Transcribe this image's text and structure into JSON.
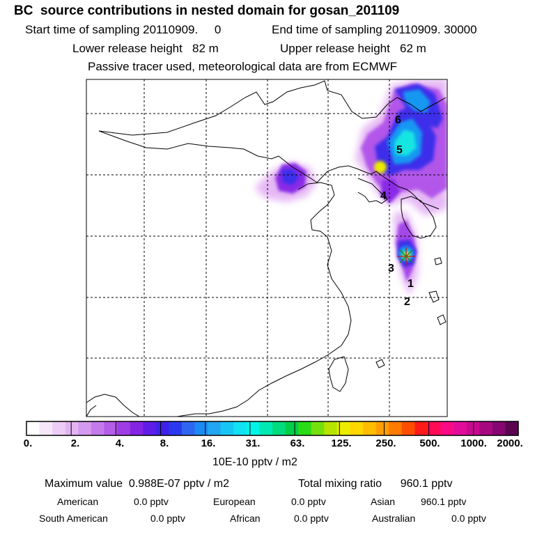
{
  "header": {
    "title": "BC  source contributions in nested domain for gosan_201109",
    "start_time": "Start time of sampling 20110909.     0",
    "end_time": "End time of sampling 20110909. 30000",
    "lower_release": "Lower release height   82 m",
    "upper_release": "Upper release height   62 m",
    "tracer_info": "Passive tracer used, meteorological data are from ECMWF"
  },
  "map": {
    "trajectory_labels": [
      "1",
      "2",
      "3",
      "4",
      "5",
      "6"
    ],
    "receptor_marker": "receptor-star"
  },
  "colorbar": {
    "tick_labels": [
      "0.",
      "2.",
      "4.",
      "8.",
      "16.",
      "31.",
      "63.",
      "125.",
      "250.",
      "500.",
      "1000.",
      "2000."
    ],
    "unit": "10E-10 pptv / m2",
    "colors": [
      "#ffffff",
      "#f6e6fa",
      "#eccdf6",
      "#e2b4f2",
      "#d49aef",
      "#c57aeb",
      "#b55ce8",
      "#9e3de6",
      "#8424e3",
      "#5f1ce8",
      "#3f20ea",
      "#2a39ef",
      "#2f66f1",
      "#1a8bf2",
      "#20a6f2",
      "#16c5f4",
      "#12e1f2",
      "#00f5e8",
      "#00e8b3",
      "#00db7d",
      "#00ce48",
      "#2adb18",
      "#74e00e",
      "#b6e400",
      "#ecec00",
      "#ffd800",
      "#ffbd00",
      "#ff9e00",
      "#ff7a00",
      "#ff4d00",
      "#ff1a1a",
      "#ff0a55",
      "#f90a86",
      "#e30c9a",
      "#c80a90",
      "#a60880",
      "#850670",
      "#5a0450"
    ]
  },
  "stats": {
    "max_value_label": "Maximum value  0.988E-07 pptv / m2",
    "total_label": "Total mixing ratio      960.1 pptv",
    "regions": [
      {
        "name": "American",
        "value": "0.0 pptv"
      },
      {
        "name": "European",
        "value": "0.0 pptv"
      },
      {
        "name": "Asian",
        "value": "960.1 pptv"
      },
      {
        "name": "South American",
        "value": "0.0 pptv"
      },
      {
        "name": "African",
        "value": "0.0 pptv"
      },
      {
        "name": "Australian",
        "value": "0.0 pptv"
      }
    ]
  }
}
